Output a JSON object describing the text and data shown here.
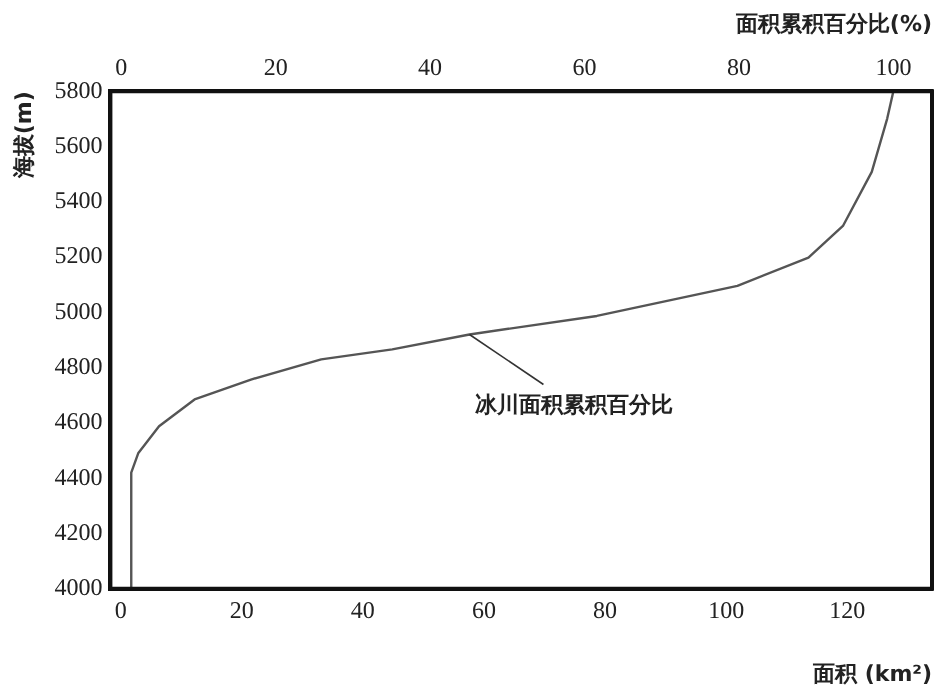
{
  "chart_data": {
    "type": "line",
    "xlabel": "面积 (km²)",
    "x2label": "面积累积百分比(%)",
    "ylabel": "海拔(m)",
    "xlim": [
      -1.7,
      134
    ],
    "xticks": [
      0,
      20,
      40,
      60,
      80,
      100,
      120
    ],
    "x2lim": [
      -1.4,
      105
    ],
    "x2ticks": [
      0,
      20,
      40,
      60,
      80,
      100
    ],
    "ylim": [
      4000,
      5800
    ],
    "yticks": [
      4000,
      4200,
      4400,
      4600,
      4800,
      5000,
      5200,
      5400,
      5600,
      5800
    ],
    "grid": false,
    "legend": false,
    "marker": "none",
    "line_style": "solid",
    "series": [
      {
        "name": "冰川面积累积百分比",
        "axis": "x2",
        "color": "#555555",
        "x": [
          1.3,
          1.3,
          2.2,
          4.9,
          9.5,
          16.8,
          25.9,
          35.1,
          45.1,
          61.6,
          79.8,
          89.0,
          93.5,
          97.2,
          99.2,
          100
        ],
        "values": [
          4000,
          4420,
          4490,
          4588,
          4685,
          4757,
          4830,
          4866,
          4920,
          4987,
          5096,
          5198,
          5314,
          5508,
          5701,
          5800
        ]
      }
    ]
  }
}
